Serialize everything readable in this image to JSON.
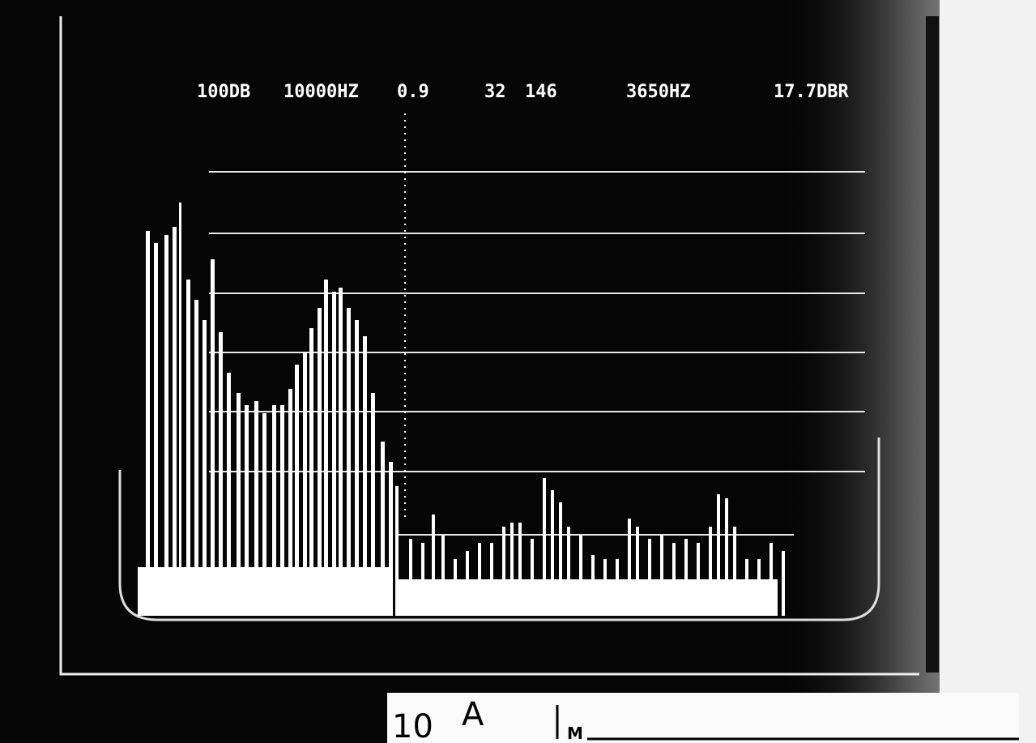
{
  "screen": {
    "readout": [
      "100DB",
      "10000HZ",
      "0.9",
      "32",
      "146",
      "3650HZ",
      "17.7DBR"
    ]
  },
  "label_card": {
    "number": "10",
    "letter": "A",
    "mark": "M"
  }
}
